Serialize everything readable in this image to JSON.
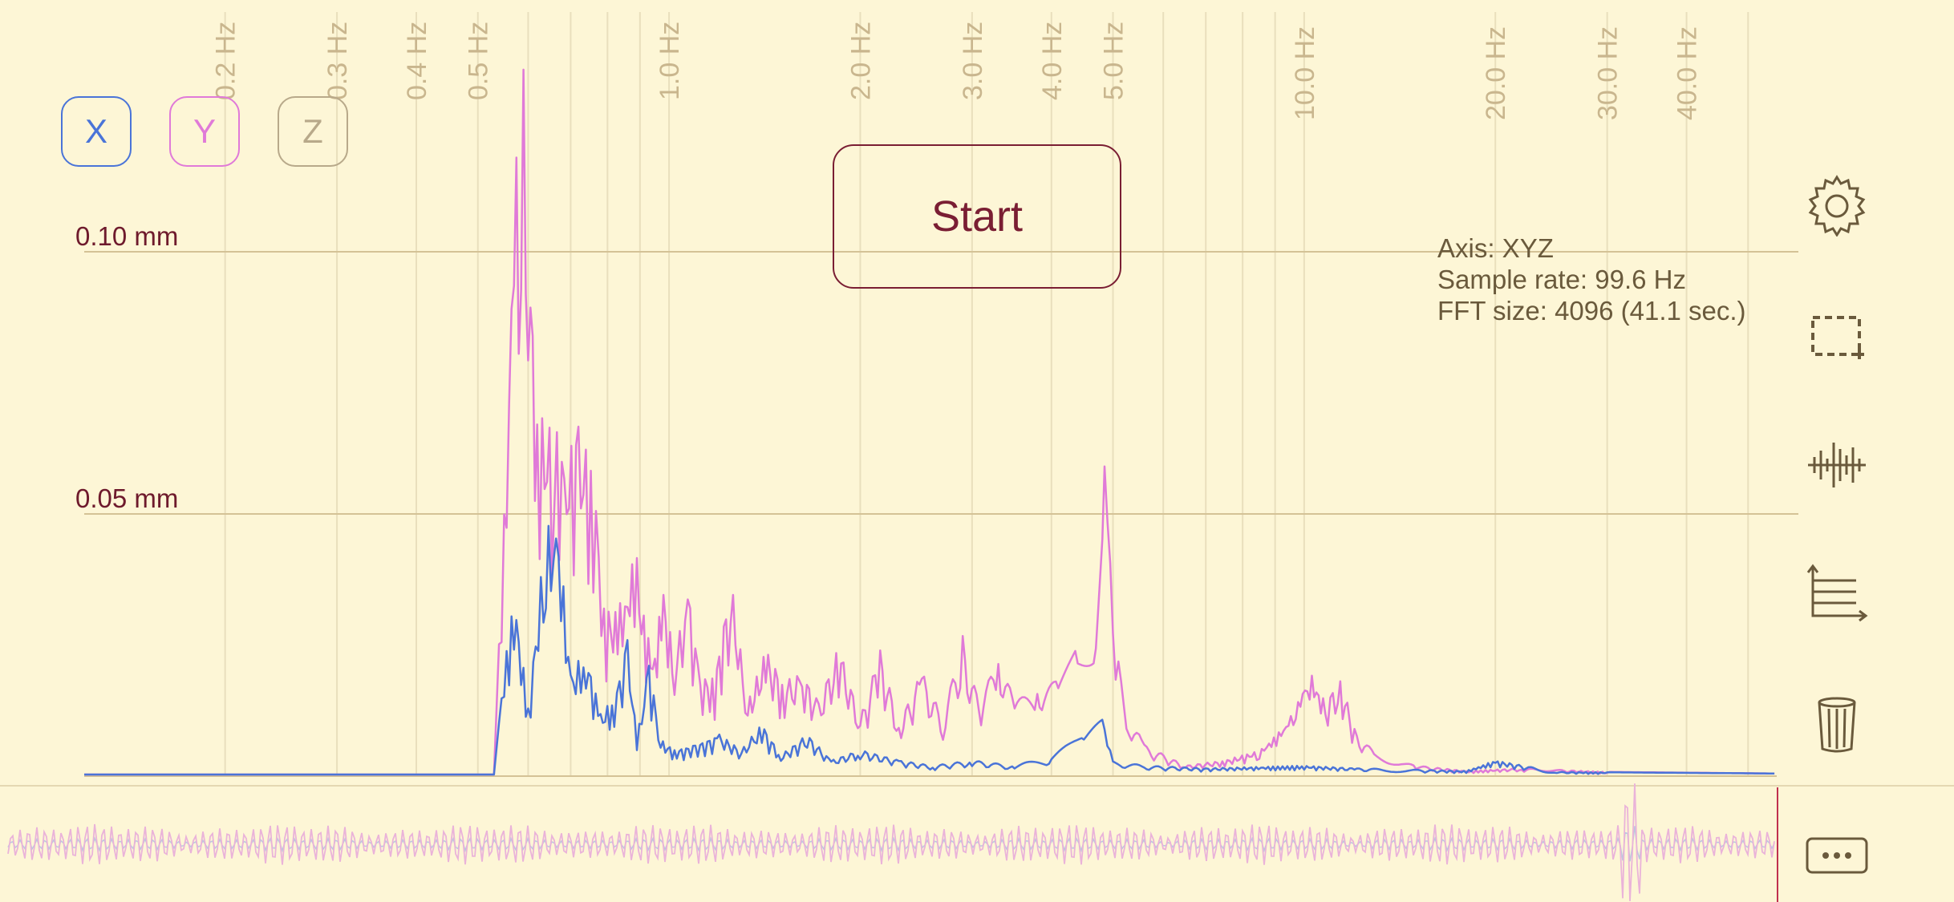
{
  "chart_data": {
    "type": "line",
    "x_scale": "log",
    "xlim": [
      0.12,
      60
    ],
    "ylim": [
      0,
      0.148
    ],
    "ytick_labels": [
      "0.10 mm",
      "0.05 mm"
    ],
    "ytick_values": [
      0.1,
      0.05
    ],
    "xtick_values": [
      0.2,
      0.3,
      0.4,
      0.5,
      1.0,
      2.0,
      3.0,
      4.0,
      5.0,
      10.0,
      20.0,
      30.0,
      40.0
    ],
    "xtick_labels": [
      "0.2 Hz",
      "0.3 Hz",
      "0.4 Hz",
      "0.5 Hz",
      "1.0 Hz",
      "2.0 Hz",
      "3.0 Hz",
      "4.0 Hz",
      "5.0 Hz",
      "10.0 Hz",
      "20.0 Hz",
      "30.0 Hz",
      "40.0 Hz"
    ],
    "series": [
      {
        "color": "#e07ad8",
        "points": [
          [
            0.12,
            0.0003
          ],
          [
            0.53,
            0.0003
          ],
          [
            0.55,
            0.05
          ],
          [
            0.57,
            0.11
          ],
          [
            0.585,
            0.148
          ],
          [
            0.6,
            0.11
          ],
          [
            0.62,
            0.07
          ],
          [
            0.66,
            0.067
          ],
          [
            0.69,
            0.062
          ],
          [
            0.72,
            0.067
          ],
          [
            0.76,
            0.06
          ],
          [
            0.79,
            0.033
          ],
          [
            0.83,
            0.031
          ],
          [
            0.86,
            0.039
          ],
          [
            0.89,
            0.042
          ],
          [
            0.92,
            0.027
          ],
          [
            0.95,
            0.025
          ],
          [
            0.98,
            0.036
          ],
          [
            1.02,
            0.022
          ],
          [
            1.07,
            0.037
          ],
          [
            1.12,
            0.019
          ],
          [
            1.18,
            0.019
          ],
          [
            1.25,
            0.038
          ],
          [
            1.33,
            0.014
          ],
          [
            1.42,
            0.024
          ],
          [
            1.52,
            0.018
          ],
          [
            1.62,
            0.02
          ],
          [
            1.72,
            0.014
          ],
          [
            1.85,
            0.025
          ],
          [
            2.0,
            0.011
          ],
          [
            2.15,
            0.024
          ],
          [
            2.3,
            0.01
          ],
          [
            2.5,
            0.02
          ],
          [
            2.7,
            0.011
          ],
          [
            2.9,
            0.027
          ],
          [
            3.1,
            0.012
          ],
          [
            3.3,
            0.027
          ],
          [
            3.5,
            0.013
          ],
          [
            3.8,
            0.022
          ],
          [
            4.1,
            0.018
          ],
          [
            4.4,
            0.025
          ],
          [
            4.7,
            0.03
          ],
          [
            4.85,
            0.06
          ],
          [
            4.95,
            0.048
          ],
          [
            5.1,
            0.022
          ],
          [
            5.3,
            0.012
          ],
          [
            5.6,
            0.006
          ],
          [
            6.5,
            0.002
          ],
          [
            7.5,
            0.003
          ],
          [
            8.5,
            0.005
          ],
          [
            9.2,
            0.009
          ],
          [
            9.7,
            0.014
          ],
          [
            10.2,
            0.021
          ],
          [
            10.8,
            0.014
          ],
          [
            11.4,
            0.019
          ],
          [
            12.0,
            0.009
          ],
          [
            13.0,
            0.004
          ],
          [
            15.0,
            0.002
          ],
          [
            18.0,
            0.001
          ],
          [
            22.0,
            0.0015
          ],
          [
            30.0,
            0.0008
          ],
          [
            55.0,
            0.0005
          ]
        ]
      },
      {
        "color": "#4a74d8",
        "points": [
          [
            0.12,
            0.0003
          ],
          [
            0.53,
            0.0003
          ],
          [
            0.55,
            0.02
          ],
          [
            0.57,
            0.036
          ],
          [
            0.6,
            0.013
          ],
          [
            0.64,
            0.048
          ],
          [
            0.67,
            0.047
          ],
          [
            0.7,
            0.02
          ],
          [
            0.74,
            0.024
          ],
          [
            0.78,
            0.012
          ],
          [
            0.82,
            0.015
          ],
          [
            0.86,
            0.026
          ],
          [
            0.89,
            0.007
          ],
          [
            0.93,
            0.022
          ],
          [
            0.97,
            0.007
          ],
          [
            1.02,
            0.005
          ],
          [
            1.1,
            0.006
          ],
          [
            1.2,
            0.008
          ],
          [
            1.3,
            0.005
          ],
          [
            1.4,
            0.01
          ],
          [
            1.5,
            0.004
          ],
          [
            1.65,
            0.008
          ],
          [
            1.8,
            0.003
          ],
          [
            2.0,
            0.005
          ],
          [
            2.3,
            0.003
          ],
          [
            2.6,
            0.002
          ],
          [
            3.0,
            0.003
          ],
          [
            3.5,
            0.002
          ],
          [
            4.0,
            0.004
          ],
          [
            4.5,
            0.008
          ],
          [
            4.85,
            0.013
          ],
          [
            5.0,
            0.003
          ],
          [
            5.6,
            0.002
          ],
          [
            7.0,
            0.0015
          ],
          [
            10.0,
            0.002
          ],
          [
            12.0,
            0.0015
          ],
          [
            18.0,
            0.001
          ],
          [
            20.0,
            0.003
          ],
          [
            25.0,
            0.0008
          ],
          [
            55.0,
            0.0005
          ]
        ]
      }
    ]
  },
  "axis_buttons": {
    "x": {
      "label": "X",
      "color": "#4a74d8"
    },
    "y": {
      "label": "Y",
      "color": "#e07ad8"
    },
    "z": {
      "label": "Z",
      "color": "#b8a98a"
    }
  },
  "start_label": "Start",
  "info": {
    "axis": "Axis: XYZ",
    "sample_rate": "Sample rate: 99.6 Hz",
    "fft_size": "FFT size: 4096 (41.1 sec.)"
  },
  "side_icons": [
    "gear-icon",
    "selection-icon",
    "waveform-icon",
    "axes-icon",
    "trash-icon",
    "more-icon"
  ],
  "colors": {
    "background": "#fdf6d6",
    "grid": "#e9dfbd",
    "label": "#c9b68e",
    "accent": "#7a1e33"
  }
}
